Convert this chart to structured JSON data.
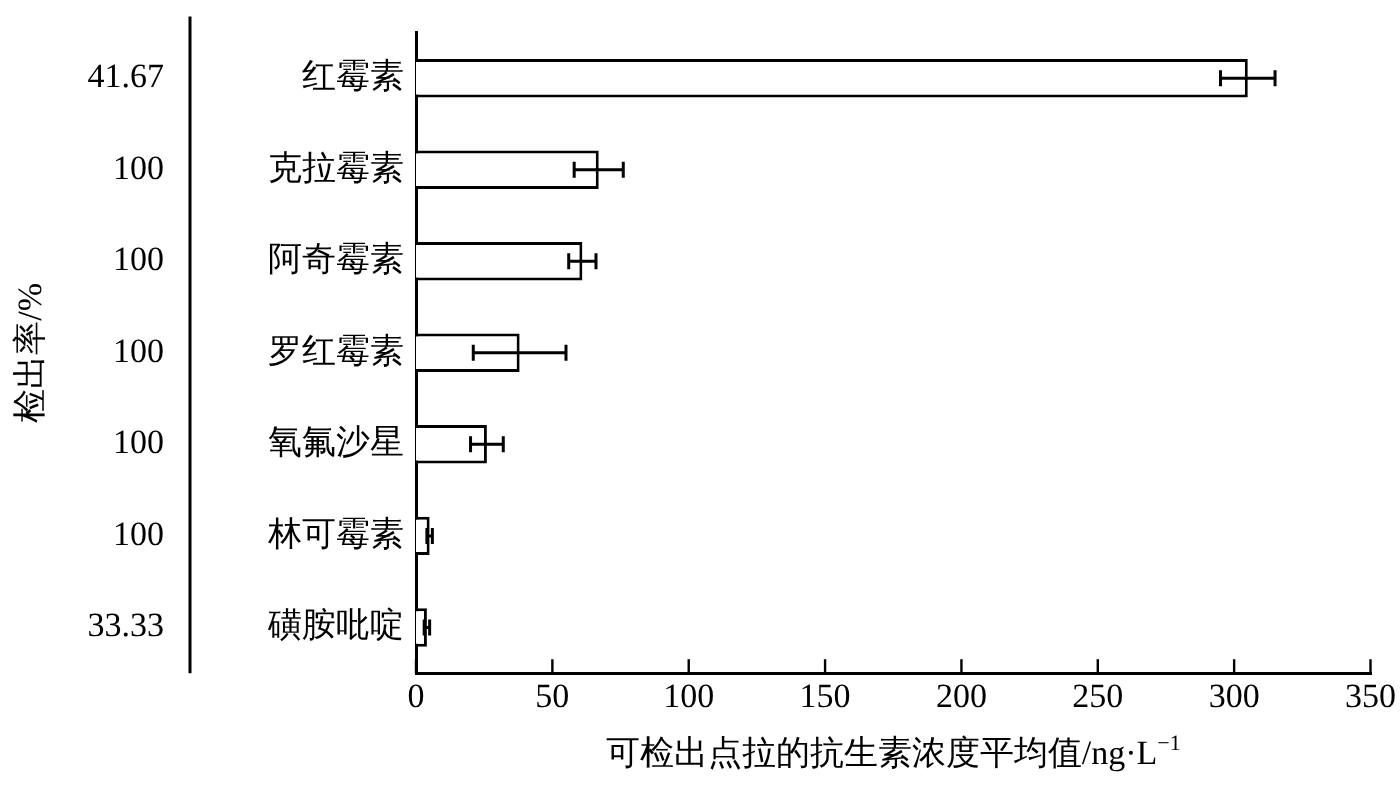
{
  "chart_data": {
    "type": "bar",
    "orientation": "horizontal",
    "xlabel": "可检出点拉的抗生素浓度平均值/ng·L$^{−1}$",
    "categories": [
      "红霉素",
      "克拉霉素",
      "阿奇霉素",
      "罗红霉素",
      "氧氟沙星",
      "林可霉素",
      "磺胺吡啶"
    ],
    "values": [
      305,
      67,
      61,
      38,
      26,
      5,
      4
    ],
    "errors": [
      10,
      9,
      5,
      17,
      6,
      1,
      1
    ],
    "color": "#ffffff",
    "xlim": [
      0,
      350
    ],
    "xticks": [
      0,
      50,
      100,
      150,
      200,
      250,
      300,
      350
    ],
    "annotations": [
      "41.67",
      "100",
      "100",
      "100",
      "100",
      "100",
      "33.33",
      "检出率/%"
    ],
    "grid": false,
    "legend": false
  }
}
